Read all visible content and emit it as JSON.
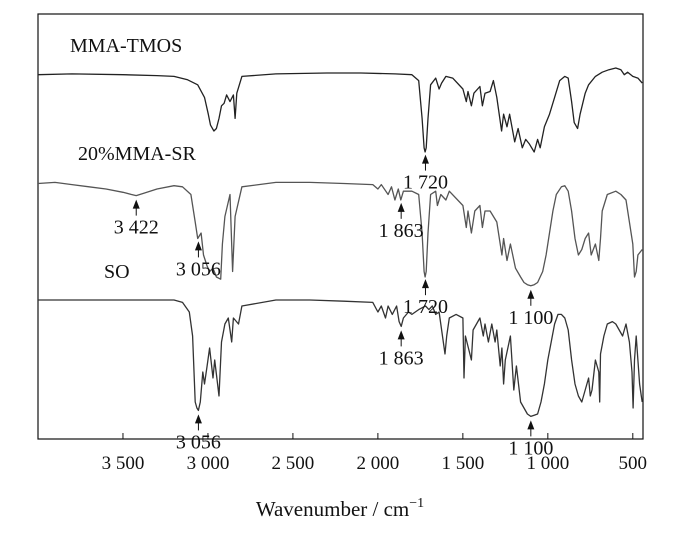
{
  "chart_data": {
    "type": "line",
    "title": "",
    "xlabel": "Wavenumber / cm",
    "xlabel_sup": "−1",
    "ylabel": "",
    "xlim": [
      4000,
      440
    ],
    "x_reversed": true,
    "grid": false,
    "x_ticks": [
      3500,
      3000,
      2500,
      2000,
      1500,
      1000,
      500
    ],
    "x_tick_labels": [
      "3 500",
      "3 000",
      "2 500",
      "2 000",
      "1 500",
      "1 000",
      "500"
    ],
    "series": [
      {
        "name": "MMA-TMOS",
        "color": "#222222",
        "points": [
          [
            4000,
            0.08
          ],
          [
            3800,
            0.07
          ],
          [
            3500,
            0.08
          ],
          [
            3300,
            0.09
          ],
          [
            3200,
            0.1
          ],
          [
            3120,
            0.14
          ],
          [
            3060,
            0.2
          ],
          [
            3020,
            0.35
          ],
          [
            2998,
            0.55
          ],
          [
            2985,
            0.68
          ],
          [
            2965,
            0.75
          ],
          [
            2950,
            0.72
          ],
          [
            2935,
            0.6
          ],
          [
            2920,
            0.45
          ],
          [
            2905,
            0.42
          ],
          [
            2890,
            0.32
          ],
          [
            2870,
            0.4
          ],
          [
            2850,
            0.32
          ],
          [
            2840,
            0.6
          ],
          [
            2830,
            0.3
          ],
          [
            2800,
            0.1
          ],
          [
            2600,
            0.07
          ],
          [
            2300,
            0.06
          ],
          [
            2100,
            0.06
          ],
          [
            1900,
            0.07
          ],
          [
            1800,
            0.08
          ],
          [
            1760,
            0.15
          ],
          [
            1740,
            0.6
          ],
          [
            1728,
            0.95
          ],
          [
            1722,
            1.0
          ],
          [
            1716,
            0.95
          ],
          [
            1705,
            0.6
          ],
          [
            1690,
            0.2
          ],
          [
            1660,
            0.12
          ],
          [
            1640,
            0.25
          ],
          [
            1625,
            0.18
          ],
          [
            1600,
            0.1
          ],
          [
            1560,
            0.12
          ],
          [
            1500,
            0.25
          ],
          [
            1480,
            0.4
          ],
          [
            1470,
            0.28
          ],
          [
            1450,
            0.45
          ],
          [
            1435,
            0.3
          ],
          [
            1400,
            0.22
          ],
          [
            1385,
            0.45
          ],
          [
            1370,
            0.3
          ],
          [
            1340,
            0.28
          ],
          [
            1320,
            0.15
          ],
          [
            1300,
            0.35
          ],
          [
            1272,
            0.75
          ],
          [
            1260,
            0.55
          ],
          [
            1240,
            0.7
          ],
          [
            1225,
            0.55
          ],
          [
            1195,
            0.88
          ],
          [
            1175,
            0.72
          ],
          [
            1150,
            0.95
          ],
          [
            1130,
            0.85
          ],
          [
            1110,
            0.9
          ],
          [
            1080,
            1.0
          ],
          [
            1060,
            0.85
          ],
          [
            1045,
            0.95
          ],
          [
            1020,
            0.7
          ],
          [
            990,
            0.55
          ],
          [
            960,
            0.35
          ],
          [
            930,
            0.15
          ],
          [
            900,
            0.1
          ],
          [
            880,
            0.12
          ],
          [
            860,
            0.4
          ],
          [
            845,
            0.65
          ],
          [
            825,
            0.72
          ],
          [
            810,
            0.55
          ],
          [
            780,
            0.3
          ],
          [
            760,
            0.2
          ],
          [
            720,
            0.1
          ],
          [
            680,
            0.05
          ],
          [
            640,
            0.02
          ],
          [
            600,
            0.0
          ],
          [
            570,
            0.02
          ],
          [
            550,
            0.08
          ],
          [
            530,
            0.05
          ],
          [
            500,
            0.1
          ],
          [
            470,
            0.12
          ],
          [
            445,
            0.18
          ]
        ]
      },
      {
        "name": "20%MMA-SR",
        "color": "#555555",
        "points": [
          [
            4000,
            0.05
          ],
          [
            3900,
            0.04
          ],
          [
            3800,
            0.06
          ],
          [
            3700,
            0.08
          ],
          [
            3600,
            0.1
          ],
          [
            3500,
            0.13
          ],
          [
            3450,
            0.15
          ],
          [
            3422,
            0.16
          ],
          [
            3380,
            0.14
          ],
          [
            3300,
            0.1
          ],
          [
            3200,
            0.07
          ],
          [
            3150,
            0.08
          ],
          [
            3100,
            0.15
          ],
          [
            3075,
            0.4
          ],
          [
            3060,
            0.55
          ],
          [
            3040,
            0.5
          ],
          [
            3026,
            0.7
          ],
          [
            3005,
            0.8
          ],
          [
            2990,
            0.85
          ],
          [
            2970,
            0.82
          ],
          [
            2950,
            0.9
          ],
          [
            2925,
            0.92
          ],
          [
            2915,
            0.6
          ],
          [
            2900,
            0.35
          ],
          [
            2870,
            0.15
          ],
          [
            2855,
            0.85
          ],
          [
            2840,
            0.35
          ],
          [
            2800,
            0.08
          ],
          [
            2600,
            0.04
          ],
          [
            2400,
            0.04
          ],
          [
            2200,
            0.05
          ],
          [
            2030,
            0.06
          ],
          [
            2000,
            0.1
          ],
          [
            1980,
            0.06
          ],
          [
            1940,
            0.15
          ],
          [
            1920,
            0.08
          ],
          [
            1900,
            0.2
          ],
          [
            1880,
            0.1
          ],
          [
            1865,
            0.2
          ],
          [
            1850,
            0.12
          ],
          [
            1800,
            0.12
          ],
          [
            1760,
            0.15
          ],
          [
            1740,
            0.5
          ],
          [
            1728,
            0.85
          ],
          [
            1722,
            0.9
          ],
          [
            1716,
            0.85
          ],
          [
            1705,
            0.5
          ],
          [
            1690,
            0.15
          ],
          [
            1660,
            0.12
          ],
          [
            1650,
            0.25
          ],
          [
            1630,
            0.15
          ],
          [
            1600,
            0.2
          ],
          [
            1580,
            0.12
          ],
          [
            1500,
            0.25
          ],
          [
            1480,
            0.45
          ],
          [
            1470,
            0.3
          ],
          [
            1450,
            0.5
          ],
          [
            1430,
            0.3
          ],
          [
            1400,
            0.25
          ],
          [
            1385,
            0.45
          ],
          [
            1370,
            0.3
          ],
          [
            1340,
            0.3
          ],
          [
            1300,
            0.4
          ],
          [
            1270,
            0.7
          ],
          [
            1260,
            0.55
          ],
          [
            1240,
            0.75
          ],
          [
            1220,
            0.6
          ],
          [
            1190,
            0.82
          ],
          [
            1160,
            0.9
          ],
          [
            1140,
            0.95
          ],
          [
            1120,
            0.97
          ],
          [
            1100,
            0.98
          ],
          [
            1080,
            0.97
          ],
          [
            1060,
            0.95
          ],
          [
            1030,
            0.85
          ],
          [
            1010,
            0.7
          ],
          [
            990,
            0.5
          ],
          [
            970,
            0.3
          ],
          [
            950,
            0.15
          ],
          [
            920,
            0.08
          ],
          [
            900,
            0.07
          ],
          [
            880,
            0.12
          ],
          [
            860,
            0.3
          ],
          [
            840,
            0.55
          ],
          [
            820,
            0.7
          ],
          [
            800,
            0.65
          ],
          [
            780,
            0.55
          ],
          [
            760,
            0.5
          ],
          [
            745,
            0.7
          ],
          [
            720,
            0.6
          ],
          [
            700,
            0.75
          ],
          [
            690,
            0.55
          ],
          [
            680,
            0.3
          ],
          [
            650,
            0.15
          ],
          [
            600,
            0.12
          ],
          [
            570,
            0.15
          ],
          [
            540,
            0.2
          ],
          [
            520,
            0.4
          ],
          [
            500,
            0.6
          ],
          [
            490,
            0.9
          ],
          [
            480,
            0.85
          ],
          [
            470,
            0.7
          ],
          [
            445,
            0.65
          ]
        ]
      },
      {
        "name": "SO",
        "color": "#333333",
        "points": [
          [
            4000,
            0.0
          ],
          [
            3800,
            0.0
          ],
          [
            3600,
            0.0
          ],
          [
            3400,
            0.0
          ],
          [
            3200,
            0.0
          ],
          [
            3150,
            0.02
          ],
          [
            3110,
            0.1
          ],
          [
            3090,
            0.3
          ],
          [
            3075,
            0.85
          ],
          [
            3065,
            0.9
          ],
          [
            3056,
            0.92
          ],
          [
            3045,
            0.85
          ],
          [
            3030,
            0.6
          ],
          [
            3020,
            0.7
          ],
          [
            3005,
            0.55
          ],
          [
            2990,
            0.4
          ],
          [
            2970,
            0.65
          ],
          [
            2960,
            0.5
          ],
          [
            2935,
            0.8
          ],
          [
            2920,
            0.35
          ],
          [
            2900,
            0.2
          ],
          [
            2880,
            0.15
          ],
          [
            2860,
            0.35
          ],
          [
            2850,
            0.15
          ],
          [
            2820,
            0.2
          ],
          [
            2800,
            0.05
          ],
          [
            2600,
            0.0
          ],
          [
            2400,
            0.0
          ],
          [
            2200,
            0.01
          ],
          [
            2030,
            0.02
          ],
          [
            2000,
            0.1
          ],
          [
            1980,
            0.05
          ],
          [
            1955,
            0.15
          ],
          [
            1940,
            0.05
          ],
          [
            1915,
            0.12
          ],
          [
            1890,
            0.05
          ],
          [
            1875,
            0.18
          ],
          [
            1863,
            0.22
          ],
          [
            1850,
            0.15
          ],
          [
            1820,
            0.1
          ],
          [
            1800,
            0.12
          ],
          [
            1760,
            0.08
          ],
          [
            1720,
            0.05
          ],
          [
            1700,
            0.08
          ],
          [
            1680,
            0.05
          ],
          [
            1660,
            0.12
          ],
          [
            1640,
            0.1
          ],
          [
            1605,
            0.45
          ],
          [
            1595,
            0.3
          ],
          [
            1580,
            0.15
          ],
          [
            1540,
            0.12
          ],
          [
            1500,
            0.15
          ],
          [
            1493,
            0.65
          ],
          [
            1485,
            0.3
          ],
          [
            1450,
            0.5
          ],
          [
            1440,
            0.25
          ],
          [
            1400,
            0.15
          ],
          [
            1380,
            0.3
          ],
          [
            1370,
            0.2
          ],
          [
            1350,
            0.35
          ],
          [
            1330,
            0.2
          ],
          [
            1310,
            0.35
          ],
          [
            1300,
            0.25
          ],
          [
            1280,
            0.55
          ],
          [
            1270,
            0.4
          ],
          [
            1260,
            0.7
          ],
          [
            1250,
            0.5
          ],
          [
            1220,
            0.3
          ],
          [
            1200,
            0.75
          ],
          [
            1185,
            0.55
          ],
          [
            1160,
            0.85
          ],
          [
            1140,
            0.9
          ],
          [
            1120,
            0.95
          ],
          [
            1100,
            0.97
          ],
          [
            1080,
            0.96
          ],
          [
            1060,
            0.95
          ],
          [
            1040,
            0.85
          ],
          [
            1020,
            0.7
          ],
          [
            1000,
            0.5
          ],
          [
            980,
            0.35
          ],
          [
            960,
            0.2
          ],
          [
            940,
            0.12
          ],
          [
            920,
            0.12
          ],
          [
            900,
            0.15
          ],
          [
            880,
            0.25
          ],
          [
            860,
            0.5
          ],
          [
            840,
            0.7
          ],
          [
            820,
            0.8
          ],
          [
            800,
            0.85
          ],
          [
            780,
            0.75
          ],
          [
            760,
            0.65
          ],
          [
            750,
            0.8
          ],
          [
            740,
            0.75
          ],
          [
            720,
            0.5
          ],
          [
            700,
            0.6
          ],
          [
            695,
            0.85
          ],
          [
            690,
            0.45
          ],
          [
            670,
            0.3
          ],
          [
            650,
            0.2
          ],
          [
            620,
            0.18
          ],
          [
            600,
            0.2
          ],
          [
            580,
            0.25
          ],
          [
            560,
            0.3
          ],
          [
            540,
            0.2
          ],
          [
            520,
            0.35
          ],
          [
            505,
            0.6
          ],
          [
            498,
            0.9
          ],
          [
            490,
            0.5
          ],
          [
            480,
            0.3
          ],
          [
            470,
            0.5
          ],
          [
            460,
            0.7
          ],
          [
            450,
            0.8
          ],
          [
            445,
            0.85
          ]
        ]
      }
    ],
    "annotations": [
      {
        "text": "1 720",
        "x": 1720,
        "series": "MMA-TMOS",
        "side": "below"
      },
      {
        "text": "3 422",
        "x": 3422,
        "series": "20%MMA-SR",
        "side": "below"
      },
      {
        "text": "1 863",
        "x": 1863,
        "series": "20%MMA-SR",
        "side": "below"
      },
      {
        "text": "3 056",
        "x": 3056,
        "series": "20%MMA-SR",
        "side": "below"
      },
      {
        "text": "1 720",
        "x": 1720,
        "series": "20%MMA-SR",
        "side": "below"
      },
      {
        "text": "1 100",
        "x": 1100,
        "series": "20%MMA-SR",
        "side": "below"
      },
      {
        "text": "1 863",
        "x": 1863,
        "series": "SO",
        "side": "below"
      },
      {
        "text": "3 056",
        "x": 3056,
        "series": "SO",
        "side": "below"
      },
      {
        "text": "1 100",
        "x": 1100,
        "series": "SO",
        "side": "below"
      }
    ]
  }
}
